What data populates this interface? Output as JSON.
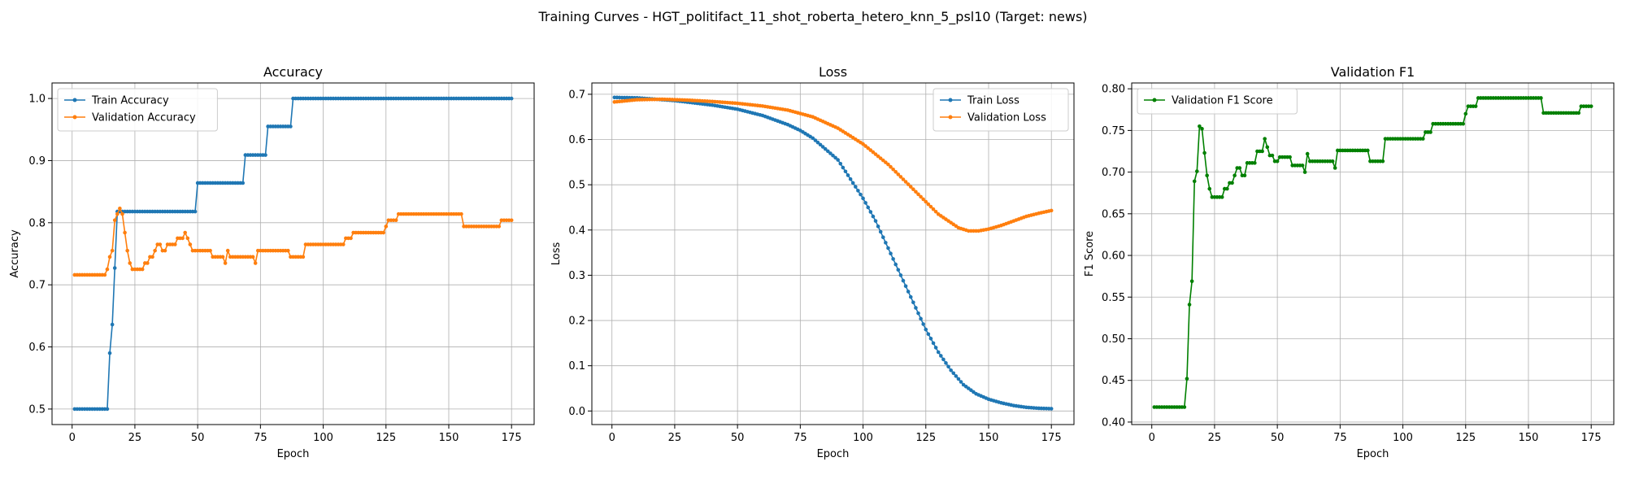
{
  "figure": {
    "suptitle": "Training Curves - HGT_politifact_11_shot_roberta_hetero_knn_5_psl10 (Target: news)"
  },
  "colors": {
    "blue": "#1f77b4",
    "orange": "#ff7f0e",
    "green": "#008000",
    "grid": "#b0b0b0"
  },
  "chart_data": [
    {
      "type": "line",
      "title": "Accuracy",
      "xlabel": "Epoch",
      "ylabel": "Accuracy",
      "xlim": [
        -8,
        184
      ],
      "ylim": [
        0.475,
        1.025
      ],
      "xticks": [
        0,
        25,
        50,
        75,
        100,
        125,
        150,
        175
      ],
      "yticks": [
        0.5,
        0.6,
        0.7,
        0.8,
        0.9,
        1.0
      ],
      "ytick_labels": [
        "0.5",
        "0.6",
        "0.7",
        "0.8",
        "0.9",
        "1.0"
      ],
      "grid": true,
      "legend_position": "upper left",
      "series": [
        {
          "name": "Train Accuracy",
          "color": "#1f77b4",
          "segments": [
            {
              "from": 1,
              "to": 14,
              "value": 0.5
            },
            {
              "from": 15,
              "to": 15,
              "value": 0.59
            },
            {
              "from": 16,
              "to": 16,
              "value": 0.636
            },
            {
              "from": 17,
              "to": 17,
              "value": 0.727
            },
            {
              "from": 18,
              "to": 49,
              "value": 0.818
            },
            {
              "from": 50,
              "to": 68,
              "value": 0.864
            },
            {
              "from": 69,
              "to": 77,
              "value": 0.909
            },
            {
              "from": 78,
              "to": 87,
              "value": 0.955
            },
            {
              "from": 88,
              "to": 175,
              "value": 1.0
            }
          ]
        },
        {
          "name": "Validation Accuracy",
          "color": "#ff7f0e",
          "segments": [
            {
              "from": 1,
              "to": 13,
              "value": 0.716
            },
            {
              "from": 14,
              "to": 14,
              "value": 0.725
            },
            {
              "from": 15,
              "to": 15,
              "value": 0.745
            },
            {
              "from": 16,
              "to": 16,
              "value": 0.755
            },
            {
              "from": 17,
              "to": 17,
              "value": 0.804
            },
            {
              "from": 18,
              "to": 18,
              "value": 0.814
            },
            {
              "from": 19,
              "to": 19,
              "value": 0.823
            },
            {
              "from": 20,
              "to": 20,
              "value": 0.814
            },
            {
              "from": 21,
              "to": 21,
              "value": 0.784
            },
            {
              "from": 22,
              "to": 22,
              "value": 0.755
            },
            {
              "from": 23,
              "to": 23,
              "value": 0.735
            },
            {
              "from": 24,
              "to": 28,
              "value": 0.725
            },
            {
              "from": 29,
              "to": 30,
              "value": 0.735
            },
            {
              "from": 31,
              "to": 32,
              "value": 0.745
            },
            {
              "from": 33,
              "to": 33,
              "value": 0.755
            },
            {
              "from": 34,
              "to": 35,
              "value": 0.765
            },
            {
              "from": 36,
              "to": 37,
              "value": 0.755
            },
            {
              "from": 38,
              "to": 41,
              "value": 0.765
            },
            {
              "from": 42,
              "to": 44,
              "value": 0.775
            },
            {
              "from": 45,
              "to": 45,
              "value": 0.784
            },
            {
              "from": 46,
              "to": 46,
              "value": 0.775
            },
            {
              "from": 47,
              "to": 47,
              "value": 0.765
            },
            {
              "from": 48,
              "to": 55,
              "value": 0.755
            },
            {
              "from": 56,
              "to": 60,
              "value": 0.745
            },
            {
              "from": 61,
              "to": 61,
              "value": 0.735
            },
            {
              "from": 62,
              "to": 62,
              "value": 0.755
            },
            {
              "from": 63,
              "to": 72,
              "value": 0.745
            },
            {
              "from": 73,
              "to": 73,
              "value": 0.735
            },
            {
              "from": 74,
              "to": 86,
              "value": 0.755
            },
            {
              "from": 87,
              "to": 92,
              "value": 0.745
            },
            {
              "from": 93,
              "to": 108,
              "value": 0.765
            },
            {
              "from": 109,
              "to": 111,
              "value": 0.775
            },
            {
              "from": 112,
              "to": 124,
              "value": 0.784
            },
            {
              "from": 125,
              "to": 125,
              "value": 0.794
            },
            {
              "from": 126,
              "to": 129,
              "value": 0.804
            },
            {
              "from": 130,
              "to": 155,
              "value": 0.814
            },
            {
              "from": 156,
              "to": 170,
              "value": 0.794
            },
            {
              "from": 171,
              "to": 175,
              "value": 0.804
            }
          ]
        }
      ]
    },
    {
      "type": "line",
      "title": "Loss",
      "xlabel": "Epoch",
      "ylabel": "Loss",
      "xlim": [
        -8,
        184
      ],
      "ylim": [
        -0.03,
        0.725
      ],
      "xticks": [
        0,
        25,
        50,
        75,
        100,
        125,
        150,
        175
      ],
      "yticks": [
        0.0,
        0.1,
        0.2,
        0.3,
        0.4,
        0.5,
        0.6,
        0.7
      ],
      "ytick_labels": [
        "0.0",
        "0.1",
        "0.2",
        "0.3",
        "0.4",
        "0.5",
        "0.6",
        "0.7"
      ],
      "grid": true,
      "legend_position": "upper right",
      "series": [
        {
          "name": "Train Loss",
          "color": "#1f77b4",
          "points": [
            [
              1,
              0.693
            ],
            [
              10,
              0.692
            ],
            [
              25,
              0.686
            ],
            [
              40,
              0.676
            ],
            [
              50,
              0.667
            ],
            [
              60,
              0.653
            ],
            [
              70,
              0.633
            ],
            [
              75,
              0.62
            ],
            [
              80,
              0.603
            ],
            [
              90,
              0.555
            ],
            [
              100,
              0.47
            ],
            [
              105,
              0.42
            ],
            [
              110,
              0.36
            ],
            [
              115,
              0.3
            ],
            [
              120,
              0.24
            ],
            [
              125,
              0.18
            ],
            [
              130,
              0.13
            ],
            [
              135,
              0.09
            ],
            [
              140,
              0.058
            ],
            [
              145,
              0.038
            ],
            [
              150,
              0.026
            ],
            [
              155,
              0.018
            ],
            [
              160,
              0.012
            ],
            [
              165,
              0.008
            ],
            [
              170,
              0.006
            ],
            [
              175,
              0.005
            ]
          ]
        },
        {
          "name": "Validation Loss",
          "color": "#ff7f0e",
          "points": [
            [
              1,
              0.683
            ],
            [
              10,
              0.688
            ],
            [
              20,
              0.689
            ],
            [
              30,
              0.687
            ],
            [
              40,
              0.684
            ],
            [
              50,
              0.68
            ],
            [
              60,
              0.674
            ],
            [
              70,
              0.665
            ],
            [
              80,
              0.65
            ],
            [
              90,
              0.625
            ],
            [
              100,
              0.59
            ],
            [
              110,
              0.545
            ],
            [
              120,
              0.49
            ],
            [
              130,
              0.435
            ],
            [
              138,
              0.405
            ],
            [
              142,
              0.398
            ],
            [
              146,
              0.398
            ],
            [
              150,
              0.402
            ],
            [
              155,
              0.41
            ],
            [
              160,
              0.42
            ],
            [
              165,
              0.43
            ],
            [
              170,
              0.437
            ],
            [
              175,
              0.443
            ]
          ]
        }
      ]
    },
    {
      "type": "line",
      "title": "Validation F1",
      "xlabel": "Epoch",
      "ylabel": "F1 Score",
      "xlim": [
        -8,
        184
      ],
      "ylim": [
        0.397,
        0.807
      ],
      "xticks": [
        0,
        25,
        50,
        75,
        100,
        125,
        150,
        175
      ],
      "yticks": [
        0.4,
        0.45,
        0.5,
        0.55,
        0.6,
        0.65,
        0.7,
        0.75,
        0.8
      ],
      "ytick_labels": [
        "0.40",
        "0.45",
        "0.50",
        "0.55",
        "0.60",
        "0.65",
        "0.70",
        "0.75",
        "0.80"
      ],
      "grid": true,
      "legend_position": "upper left",
      "series": [
        {
          "name": "Validation F1 Score",
          "color": "#008000",
          "segments": [
            {
              "from": 1,
              "to": 13,
              "value": 0.418
            },
            {
              "from": 14,
              "to": 14,
              "value": 0.452
            },
            {
              "from": 15,
              "to": 15,
              "value": 0.541
            },
            {
              "from": 16,
              "to": 16,
              "value": 0.569
            },
            {
              "from": 17,
              "to": 17,
              "value": 0.689
            },
            {
              "from": 18,
              "to": 18,
              "value": 0.701
            },
            {
              "from": 19,
              "to": 19,
              "value": 0.755
            },
            {
              "from": 20,
              "to": 20,
              "value": 0.752
            },
            {
              "from": 21,
              "to": 21,
              "value": 0.723
            },
            {
              "from": 22,
              "to": 22,
              "value": 0.696
            },
            {
              "from": 23,
              "to": 23,
              "value": 0.68
            },
            {
              "from": 24,
              "to": 28,
              "value": 0.67
            },
            {
              "from": 29,
              "to": 30,
              "value": 0.68
            },
            {
              "from": 31,
              "to": 32,
              "value": 0.687
            },
            {
              "from": 33,
              "to": 33,
              "value": 0.696
            },
            {
              "from": 34,
              "to": 35,
              "value": 0.705
            },
            {
              "from": 36,
              "to": 37,
              "value": 0.696
            },
            {
              "from": 38,
              "to": 41,
              "value": 0.711
            },
            {
              "from": 42,
              "to": 44,
              "value": 0.725
            },
            {
              "from": 45,
              "to": 45,
              "value": 0.74
            },
            {
              "from": 46,
              "to": 46,
              "value": 0.73
            },
            {
              "from": 47,
              "to": 48,
              "value": 0.72
            },
            {
              "from": 49,
              "to": 50,
              "value": 0.713
            },
            {
              "from": 51,
              "to": 55,
              "value": 0.718
            },
            {
              "from": 56,
              "to": 60,
              "value": 0.708
            },
            {
              "from": 61,
              "to": 61,
              "value": 0.7
            },
            {
              "from": 62,
              "to": 62,
              "value": 0.722
            },
            {
              "from": 63,
              "to": 72,
              "value": 0.713
            },
            {
              "from": 73,
              "to": 73,
              "value": 0.705
            },
            {
              "from": 74,
              "to": 86,
              "value": 0.726
            },
            {
              "from": 87,
              "to": 92,
              "value": 0.713
            },
            {
              "from": 93,
              "to": 108,
              "value": 0.74
            },
            {
              "from": 109,
              "to": 111,
              "value": 0.748
            },
            {
              "from": 112,
              "to": 124,
              "value": 0.758
            },
            {
              "from": 125,
              "to": 125,
              "value": 0.77
            },
            {
              "from": 126,
              "to": 129,
              "value": 0.779
            },
            {
              "from": 130,
              "to": 155,
              "value": 0.789
            },
            {
              "from": 156,
              "to": 170,
              "value": 0.771
            },
            {
              "from": 171,
              "to": 175,
              "value": 0.779
            }
          ]
        }
      ]
    }
  ]
}
